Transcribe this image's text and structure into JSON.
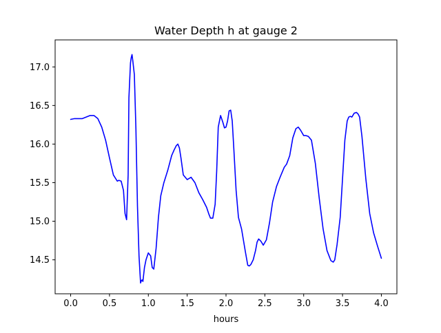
{
  "chart_data": {
    "type": "line",
    "title": "Water Depth h at gauge 2",
    "xlabel": "hours",
    "ylabel": "",
    "xlim": [
      -0.2,
      4.2
    ],
    "ylim": [
      14.06,
      17.35
    ],
    "xticks": [
      0.0,
      0.5,
      1.0,
      1.5,
      2.0,
      2.5,
      3.0,
      3.5,
      4.0
    ],
    "xtick_labels": [
      "0.0",
      "0.5",
      "1.0",
      "1.5",
      "2.0",
      "2.5",
      "3.0",
      "3.5",
      "4.0"
    ],
    "yticks": [
      14.5,
      15.0,
      15.5,
      16.0,
      16.5,
      17.0
    ],
    "ytick_labels": [
      "14.5",
      "15.0",
      "15.5",
      "16.0",
      "16.5",
      "17.0"
    ],
    "grid": false,
    "series": [
      {
        "color": "#0000ff",
        "x": [
          0.0,
          0.05,
          0.1,
          0.15,
          0.2,
          0.25,
          0.3,
          0.35,
          0.4,
          0.45,
          0.5,
          0.55,
          0.6,
          0.62,
          0.65,
          0.68,
          0.7,
          0.72,
          0.74,
          0.75,
          0.77,
          0.78,
          0.79,
          0.8,
          0.82,
          0.84,
          0.86,
          0.88,
          0.9,
          0.91,
          0.92,
          0.93,
          0.95,
          0.97,
          1.0,
          1.03,
          1.05,
          1.07,
          1.1,
          1.13,
          1.16,
          1.2,
          1.25,
          1.3,
          1.33,
          1.36,
          1.38,
          1.4,
          1.42,
          1.45,
          1.5,
          1.55,
          1.6,
          1.65,
          1.7,
          1.75,
          1.78,
          1.8,
          1.83,
          1.86,
          1.88,
          1.9,
          1.93,
          1.96,
          1.98,
          2.0,
          2.02,
          2.04,
          2.06,
          2.08,
          2.1,
          2.13,
          2.16,
          2.2,
          2.25,
          2.28,
          2.3,
          2.32,
          2.35,
          2.38,
          2.4,
          2.42,
          2.45,
          2.48,
          2.52,
          2.56,
          2.6,
          2.65,
          2.7,
          2.75,
          2.78,
          2.82,
          2.86,
          2.9,
          2.93,
          2.96,
          3.0,
          3.03,
          3.06,
          3.1,
          3.15,
          3.2,
          3.25,
          3.3,
          3.35,
          3.38,
          3.4,
          3.43,
          3.47,
          3.5,
          3.53,
          3.56,
          3.58,
          3.6,
          3.62,
          3.65,
          3.68,
          3.7,
          3.72,
          3.75,
          3.8,
          3.85,
          3.9,
          3.95,
          4.0
        ],
        "y": [
          16.32,
          16.33,
          16.33,
          16.33,
          16.35,
          16.37,
          16.37,
          16.33,
          16.22,
          16.05,
          15.82,
          15.6,
          15.52,
          15.53,
          15.52,
          15.4,
          15.1,
          15.02,
          15.6,
          16.6,
          17.05,
          17.12,
          17.16,
          17.08,
          16.9,
          16.2,
          15.2,
          14.55,
          14.2,
          14.23,
          14.24,
          14.22,
          14.4,
          14.5,
          14.59,
          14.55,
          14.4,
          14.38,
          14.65,
          15.05,
          15.33,
          15.5,
          15.66,
          15.85,
          15.92,
          15.98,
          16.0,
          15.95,
          15.82,
          15.6,
          15.54,
          15.57,
          15.5,
          15.37,
          15.28,
          15.18,
          15.09,
          15.04,
          15.04,
          15.22,
          15.65,
          16.22,
          16.37,
          16.28,
          16.21,
          16.22,
          16.3,
          16.43,
          16.44,
          16.3,
          15.95,
          15.4,
          15.05,
          14.9,
          14.6,
          14.43,
          14.42,
          14.44,
          14.5,
          14.62,
          14.73,
          14.77,
          14.74,
          14.69,
          14.76,
          14.98,
          15.25,
          15.45,
          15.58,
          15.7,
          15.74,
          15.85,
          16.08,
          16.2,
          16.22,
          16.18,
          16.11,
          16.11,
          16.1,
          16.05,
          15.75,
          15.3,
          14.9,
          14.62,
          14.49,
          14.47,
          14.5,
          14.7,
          15.05,
          15.55,
          16.05,
          16.3,
          16.35,
          16.36,
          16.35,
          16.4,
          16.41,
          16.39,
          16.35,
          16.1,
          15.55,
          15.1,
          14.85,
          14.68,
          14.52
        ]
      }
    ]
  }
}
